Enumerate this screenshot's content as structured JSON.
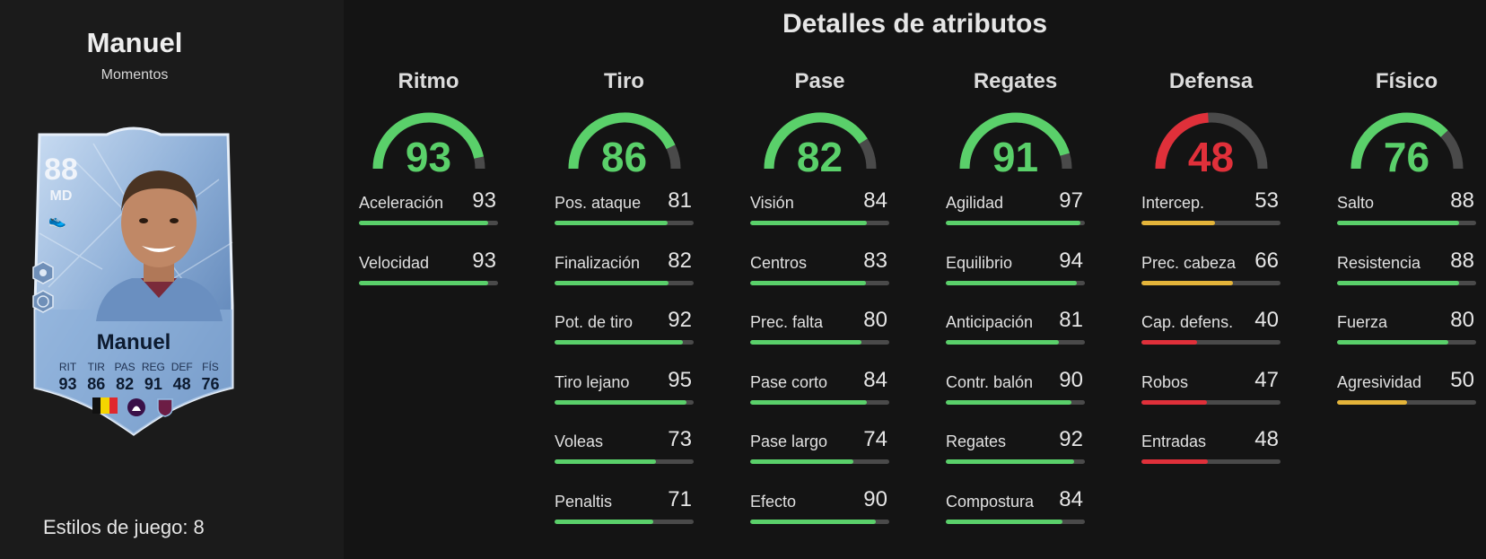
{
  "player": {
    "name": "Manuel",
    "version": "Momentos",
    "playstyles_label": "Estilos de juego: 8"
  },
  "card": {
    "rating": "88",
    "position": "MD",
    "name": "Manuel",
    "stat_labels": [
      "RIT",
      "TIR",
      "PAS",
      "REG",
      "DEF",
      "FÍS"
    ],
    "stat_values": [
      "93",
      "86",
      "82",
      "91",
      "48",
      "76"
    ],
    "nation_icon": "belgium-flag-icon",
    "league_icon": "premier-league-icon",
    "club_icon": "burnley-crest-icon"
  },
  "section_title": "Detalles de atributos",
  "colors": {
    "green": "#5ad06a",
    "red": "#e0303a",
    "yellow": "#e4b43a",
    "track": "#4a4a4a"
  },
  "categories": [
    {
      "title": "Ritmo",
      "value": 93,
      "attributes": [
        {
          "name": "Aceleración",
          "value": 93
        },
        {
          "name": "Velocidad",
          "value": 93
        }
      ]
    },
    {
      "title": "Tiro",
      "value": 86,
      "attributes": [
        {
          "name": "Pos. ataque",
          "value": 81
        },
        {
          "name": "Finalización",
          "value": 82
        },
        {
          "name": "Pot. de tiro",
          "value": 92
        },
        {
          "name": "Tiro lejano",
          "value": 95
        },
        {
          "name": "Voleas",
          "value": 73
        },
        {
          "name": "Penaltis",
          "value": 71
        }
      ]
    },
    {
      "title": "Pase",
      "value": 82,
      "attributes": [
        {
          "name": "Visión",
          "value": 84
        },
        {
          "name": "Centros",
          "value": 83
        },
        {
          "name": "Prec. falta",
          "value": 80
        },
        {
          "name": "Pase corto",
          "value": 84
        },
        {
          "name": "Pase largo",
          "value": 74
        },
        {
          "name": "Efecto",
          "value": 90
        }
      ]
    },
    {
      "title": "Regates",
      "value": 91,
      "attributes": [
        {
          "name": "Agilidad",
          "value": 97
        },
        {
          "name": "Equilibrio",
          "value": 94
        },
        {
          "name": "Anticipación",
          "value": 81
        },
        {
          "name": "Contr. balón",
          "value": 90
        },
        {
          "name": "Regates",
          "value": 92
        },
        {
          "name": "Compostura",
          "value": 84
        }
      ]
    },
    {
      "title": "Defensa",
      "value": 48,
      "attributes": [
        {
          "name": "Intercep.",
          "value": 53
        },
        {
          "name": "Prec. cabeza",
          "value": 66
        },
        {
          "name": "Cap. defens.",
          "value": 40
        },
        {
          "name": "Robos",
          "value": 47
        },
        {
          "name": "Entradas",
          "value": 48
        }
      ]
    },
    {
      "title": "Físico",
      "value": 76,
      "attributes": [
        {
          "name": "Salto",
          "value": 88
        },
        {
          "name": "Resistencia",
          "value": 88
        },
        {
          "name": "Fuerza",
          "value": 80
        },
        {
          "name": "Agresividad",
          "value": 50
        }
      ]
    }
  ]
}
